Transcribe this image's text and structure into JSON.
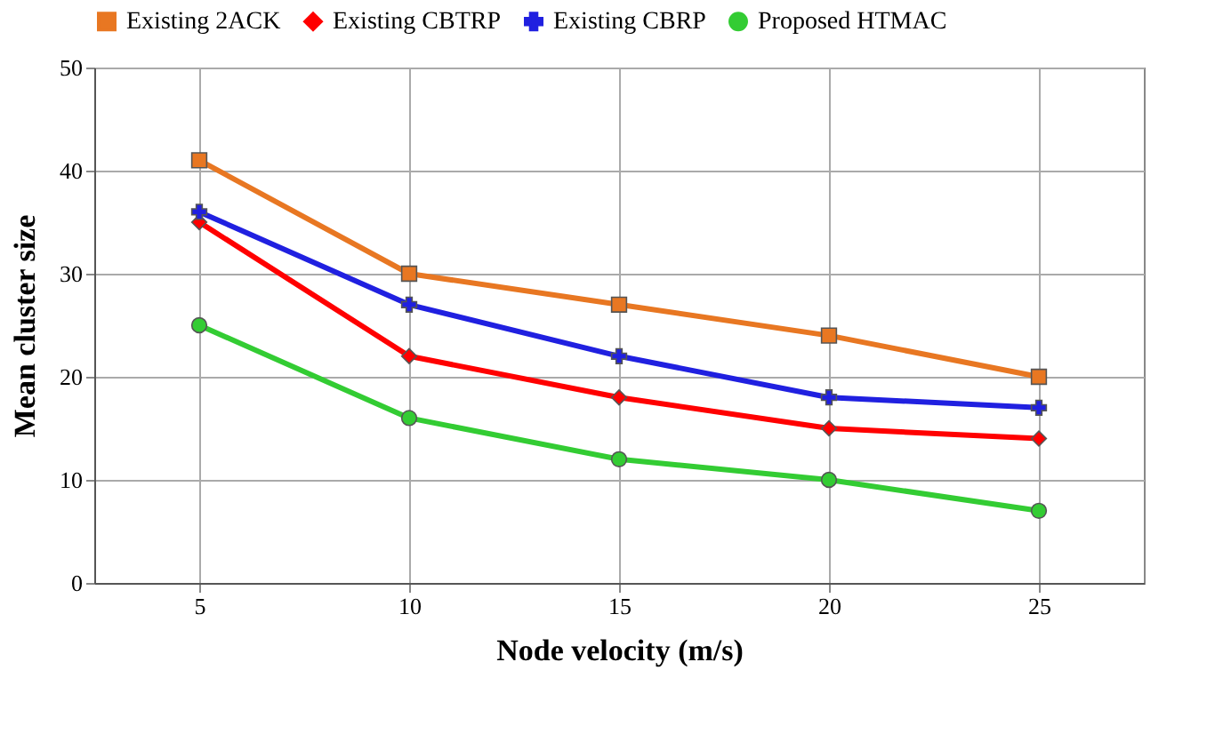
{
  "chart_data": {
    "type": "line",
    "xlabel": "Node velocity (m/s)",
    "ylabel": "Mean cluster size",
    "categories": [
      "5",
      "10",
      "15",
      "20",
      "25"
    ],
    "series": [
      {
        "name": "Existing 2ACK",
        "color": "#e87722",
        "marker": "square",
        "values": [
          41,
          30,
          27,
          24,
          20
        ]
      },
      {
        "name": "Existing CBTRP",
        "color": "#ff0000",
        "marker": "diamond",
        "values": [
          35,
          22,
          18,
          15,
          14
        ]
      },
      {
        "name": "Existing CBRP",
        "color": "#2020e0",
        "marker": "cross",
        "values": [
          36,
          27,
          22,
          18,
          17
        ]
      },
      {
        "name": "Proposed HTMAC",
        "color": "#33cc33",
        "marker": "circle",
        "values": [
          25,
          16,
          12,
          10,
          7
        ]
      }
    ],
    "ylim": [
      0,
      50
    ],
    "yticks": [
      0,
      10,
      20,
      30,
      40,
      50
    ],
    "grid": true,
    "legend": "top",
    "line_style": "solid"
  }
}
